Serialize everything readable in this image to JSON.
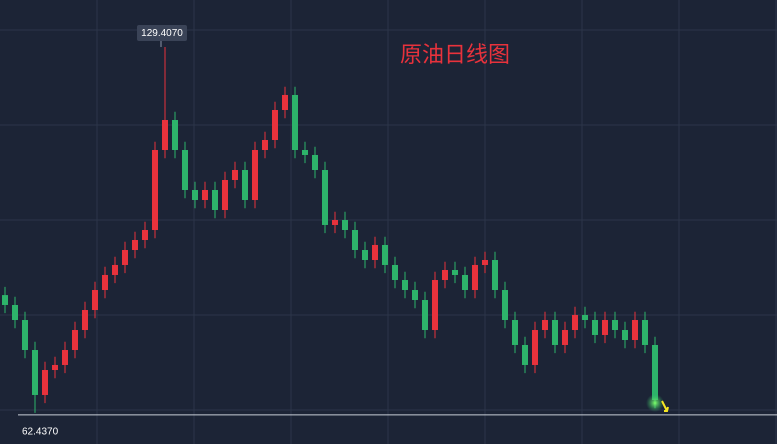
{
  "chart_data": {
    "type": "candlestick",
    "title": "原油日线图",
    "open": [
      84.0,
      82.19,
      79.44,
      73.95,
      65.72,
      70.29,
      71.21,
      73.95,
      77.61,
      81.27,
      84.93,
      87.68,
      89.51,
      92.25,
      94.08,
      95.91,
      110.55,
      116.04,
      110.55,
      103.23,
      101.4,
      103.23,
      99.57,
      105.06,
      106.89,
      101.4,
      110.55,
      112.38,
      117.87,
      120.62,
      110.55,
      109.64,
      106.89,
      96.83,
      97.74,
      95.91,
      92.25,
      90.42,
      93.17,
      89.51,
      86.76,
      84.93,
      83.1,
      77.61,
      86.76,
      88.59,
      87.68,
      84.93,
      89.51,
      90.42,
      84.93,
      79.44,
      74.87,
      71.21,
      77.61,
      79.44,
      74.87,
      77.61,
      80.36,
      79.44,
      76.7,
      79.44,
      77.61,
      75.78,
      79.44,
      74.87
    ],
    "high": [
      85.5,
      83.69,
      80.94,
      75.45,
      71.79,
      72.71,
      75.45,
      79.11,
      82.77,
      86.43,
      89.18,
      91.01,
      93.75,
      95.58,
      97.41,
      112.05,
      129.407,
      117.54,
      112.05,
      104.73,
      104.73,
      104.73,
      106.56,
      108.39,
      108.39,
      112.05,
      113.88,
      119.37,
      122.12,
      122.12,
      112.05,
      111.14,
      108.39,
      99.24,
      99.24,
      97.41,
      93.75,
      94.67,
      94.67,
      91.01,
      88.26,
      86.43,
      84.6,
      88.26,
      90.09,
      90.09,
      89.18,
      91.01,
      91.92,
      91.92,
      86.43,
      80.94,
      76.37,
      79.11,
      80.94,
      80.94,
      79.11,
      81.86,
      81.86,
      80.94,
      80.94,
      80.94,
      79.11,
      80.94,
      80.94,
      76.37
    ],
    "low": [
      80.69,
      77.94,
      72.45,
      62.437,
      64.22,
      68.79,
      69.71,
      72.45,
      76.11,
      79.77,
      83.43,
      86.18,
      88.01,
      90.75,
      92.58,
      94.41,
      109.05,
      109.05,
      101.73,
      99.9,
      99.9,
      98.07,
      98.07,
      103.56,
      99.9,
      99.9,
      109.05,
      110.88,
      116.37,
      109.05,
      108.14,
      105.39,
      95.33,
      95.33,
      94.41,
      90.75,
      88.92,
      88.92,
      88.01,
      85.26,
      83.43,
      81.6,
      76.11,
      76.11,
      85.26,
      86.18,
      83.43,
      83.43,
      88.01,
      83.43,
      77.94,
      73.37,
      69.71,
      69.71,
      76.11,
      73.37,
      73.37,
      76.11,
      77.94,
      75.2,
      75.2,
      76.11,
      74.28,
      74.28,
      73.37,
      63.3
    ],
    "close": [
      82.19,
      79.44,
      73.95,
      65.72,
      70.29,
      71.21,
      73.95,
      77.61,
      81.27,
      84.93,
      87.68,
      89.51,
      92.25,
      94.08,
      95.91,
      110.55,
      116.04,
      110.55,
      103.23,
      101.4,
      103.23,
      99.57,
      105.06,
      106.89,
      101.4,
      110.55,
      112.38,
      117.87,
      120.62,
      110.55,
      109.64,
      106.89,
      96.83,
      97.74,
      95.91,
      92.25,
      90.42,
      93.17,
      89.51,
      86.76,
      84.93,
      83.1,
      77.61,
      86.76,
      88.59,
      87.68,
      84.93,
      89.51,
      90.42,
      84.93,
      79.44,
      74.87,
      71.21,
      77.61,
      79.44,
      74.87,
      77.61,
      80.36,
      79.44,
      76.7,
      79.44,
      77.61,
      75.78,
      79.44,
      74.87,
      64.8
    ],
    "up_color": "#e8323c",
    "down_color": "#2db36a",
    "ylim": [
      56.75,
      138.0
    ],
    "grid": true,
    "annotations": [
      {
        "value": 129.407,
        "label": "129.4070"
      },
      {
        "value": 62.437,
        "label": "62.4370"
      }
    ]
  }
}
